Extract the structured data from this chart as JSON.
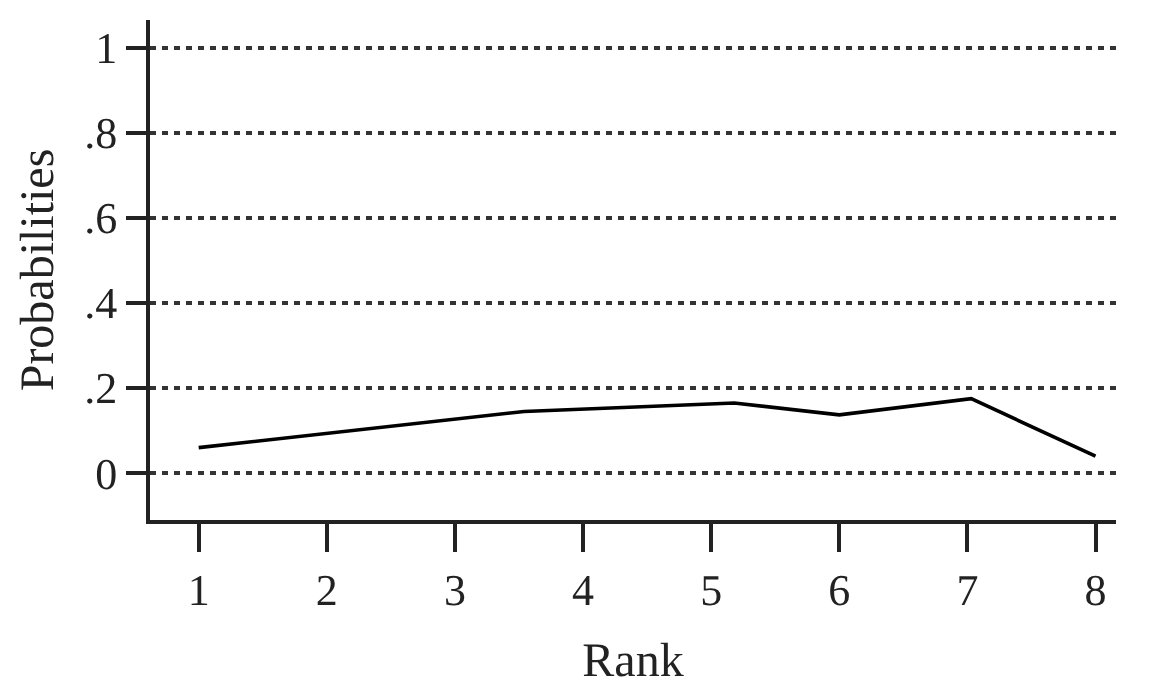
{
  "chart_data": {
    "type": "line",
    "xlabel": "Rank",
    "ylabel": "Probabilities",
    "series": [
      {
        "color": "#000000",
        "x": [
          1,
          3.54,
          5.18,
          6,
          7.03,
          8
        ],
        "values": [
          0.06,
          0.145,
          0.165,
          0.137,
          0.175,
          0.04
        ]
      }
    ],
    "xlim": [
      0.62,
      8.16
    ],
    "xticks": [
      1,
      2,
      3,
      4,
      5,
      6,
      7,
      8
    ],
    "ylim": [
      -0.11,
      1.065
    ],
    "yticks": [
      {
        "value": 0,
        "label": "0"
      },
      {
        "value": 0.2,
        "label": ".2"
      },
      {
        "value": 0.4,
        "label": ".4"
      },
      {
        "value": 0.6,
        "label": ".6"
      },
      {
        "value": 0.8,
        "label": ".8"
      },
      {
        "value": 1,
        "label": "1"
      }
    ],
    "grid": "y",
    "marker": "none",
    "line_style": "solid",
    "legend": false
  }
}
